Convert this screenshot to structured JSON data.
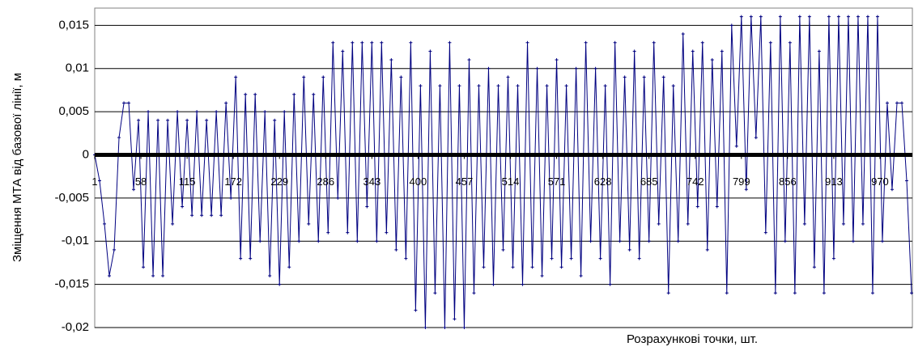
{
  "chart_data": {
    "type": "line",
    "x_label": "Розрахункові точки, шт.",
    "y_label": "Зміщення МТА від базової лінії, м",
    "color": "#000080",
    "grid": true,
    "xlim": [
      1,
      1010
    ],
    "xticks": [
      1,
      58,
      115,
      172,
      229,
      286,
      343,
      400,
      457,
      514,
      571,
      628,
      685,
      742,
      799,
      856,
      913,
      970
    ],
    "ylim": [
      -0.02,
      0.017
    ],
    "yticks": [
      {
        "value": -0.02,
        "label": "-0,02"
      },
      {
        "value": -0.015,
        "label": "-0,015"
      },
      {
        "value": -0.01,
        "label": "-0,01"
      },
      {
        "value": -0.005,
        "label": "-0,005"
      },
      0,
      {
        "value": 0.005,
        "label": "0,005"
      },
      {
        "value": 0.01,
        "label": "0,01"
      },
      {
        "value": 0.015,
        "label": "0,015"
      }
    ],
    "x": [
      1,
      7,
      13,
      19,
      25,
      31,
      37,
      43,
      49,
      55,
      61,
      67,
      73,
      79,
      85,
      91,
      97,
      103,
      109,
      115,
      121,
      127,
      133,
      139,
      145,
      151,
      157,
      163,
      169,
      175,
      181,
      187,
      193,
      199,
      205,
      211,
      217,
      223,
      229,
      235,
      241,
      247,
      253,
      259,
      265,
      271,
      277,
      283,
      289,
      295,
      301,
      307,
      313,
      319,
      325,
      331,
      337,
      343,
      349,
      355,
      361,
      367,
      373,
      379,
      385,
      391,
      397,
      403,
      409,
      415,
      421,
      427,
      433,
      439,
      445,
      451,
      457,
      463,
      469,
      475,
      481,
      487,
      493,
      499,
      505,
      511,
      517,
      523,
      529,
      535,
      541,
      547,
      553,
      559,
      565,
      571,
      577,
      583,
      589,
      595,
      601,
      607,
      613,
      619,
      625,
      631,
      637,
      643,
      649,
      655,
      661,
      667,
      673,
      679,
      685,
      691,
      697,
      703,
      709,
      715,
      721,
      727,
      733,
      739,
      745,
      751,
      757,
      763,
      769,
      775,
      781,
      787,
      793,
      799,
      805,
      811,
      817,
      823,
      829,
      835,
      841,
      847,
      853,
      859,
      865,
      871,
      877,
      883,
      889,
      895,
      901,
      907,
      913,
      919,
      925,
      931,
      937,
      943,
      949,
      955,
      961,
      967,
      973,
      979,
      985,
      991,
      997,
      1003,
      1009
    ],
    "values": [
      0,
      -0.003,
      -0.008,
      -0.014,
      -0.011,
      0.002,
      0.006,
      0.006,
      -0.004,
      0.004,
      -0.013,
      0.005,
      -0.014,
      0.004,
      -0.014,
      0.004,
      -0.008,
      0.005,
      -0.006,
      0.004,
      -0.007,
      0.005,
      -0.007,
      0.004,
      -0.007,
      0.005,
      -0.007,
      0.006,
      -0.005,
      0.009,
      -0.012,
      0.007,
      -0.012,
      0.007,
      -0.01,
      0.005,
      -0.014,
      0.004,
      -0.015,
      0.005,
      -0.013,
      0.007,
      -0.01,
      0.009,
      -0.008,
      0.007,
      -0.01,
      0.009,
      -0.009,
      0.013,
      -0.005,
      0.012,
      -0.009,
      0.013,
      -0.01,
      0.013,
      -0.006,
      0.013,
      -0.01,
      0.013,
      -0.009,
      0.011,
      -0.011,
      0.009,
      -0.012,
      0.013,
      -0.018,
      0.008,
      -0.02,
      0.012,
      -0.016,
      0.008,
      -0.02,
      0.013,
      -0.019,
      0.008,
      -0.02,
      0.011,
      -0.016,
      0.008,
      -0.013,
      0.01,
      -0.015,
      0.008,
      -0.011,
      0.009,
      -0.013,
      0.008,
      -0.015,
      0.013,
      -0.013,
      0.01,
      -0.014,
      0.008,
      -0.012,
      0.011,
      -0.013,
      0.008,
      -0.012,
      0.01,
      -0.014,
      0.013,
      -0.01,
      0.01,
      -0.012,
      0.008,
      -0.015,
      0.013,
      -0.01,
      0.009,
      -0.011,
      0.012,
      -0.012,
      0.009,
      -0.01,
      0.013,
      -0.008,
      0.009,
      -0.016,
      0.008,
      -0.01,
      0.014,
      -0.008,
      0.012,
      -0.006,
      0.013,
      -0.011,
      0.011,
      -0.006,
      0.012,
      -0.016,
      0.015,
      0.001,
      0.016,
      -0.004,
      0.016,
      0.002,
      0.016,
      -0.009,
      0.013,
      -0.016,
      0.016,
      -0.01,
      0.013,
      -0.016,
      0.016,
      -0.008,
      0.016,
      -0.013,
      0.012,
      -0.016,
      0.016,
      -0.012,
      0.016,
      -0.008,
      0.016,
      -0.01,
      0.016,
      -0.008,
      0.016,
      -0.016,
      0.016,
      -0.01,
      0.006,
      -0.004,
      0.006,
      0.006,
      -0.003,
      -0.016
    ]
  }
}
